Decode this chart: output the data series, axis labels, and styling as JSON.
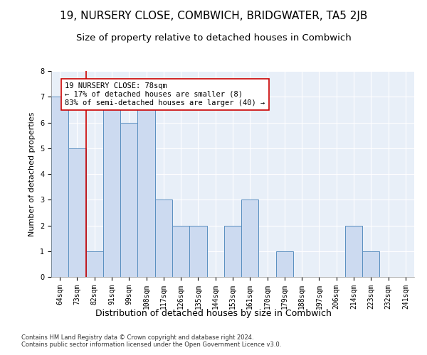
{
  "title": "19, NURSERY CLOSE, COMBWICH, BRIDGWATER, TA5 2JB",
  "subtitle": "Size of property relative to detached houses in Combwich",
  "xlabel": "Distribution of detached houses by size in Combwich",
  "ylabel": "Number of detached properties",
  "categories": [
    "64sqm",
    "73sqm",
    "82sqm",
    "91sqm",
    "99sqm",
    "108sqm",
    "117sqm",
    "126sqm",
    "135sqm",
    "144sqm",
    "153sqm",
    "161sqm",
    "170sqm",
    "179sqm",
    "188sqm",
    "197sqm",
    "206sqm",
    "214sqm",
    "223sqm",
    "232sqm",
    "241sqm"
  ],
  "values": [
    7,
    5,
    1,
    7,
    6,
    7,
    3,
    2,
    2,
    0,
    2,
    3,
    0,
    1,
    0,
    0,
    0,
    2,
    1,
    0,
    0
  ],
  "bar_color": "#ccdaf0",
  "bar_edge_color": "#5a8fc0",
  "vline_x": 1.5,
  "vline_color": "#cc0000",
  "annotation_box_text": "19 NURSERY CLOSE: 78sqm\n← 17% of detached houses are smaller (8)\n83% of semi-detached houses are larger (40) →",
  "ylim": [
    0,
    8
  ],
  "yticks": [
    0,
    1,
    2,
    3,
    4,
    5,
    6,
    7,
    8
  ],
  "background_color": "#e8eff8",
  "footer_line1": "Contains HM Land Registry data © Crown copyright and database right 2024.",
  "footer_line2": "Contains public sector information licensed under the Open Government Licence v3.0.",
  "grid_color": "#ffffff",
  "title_fontsize": 11,
  "subtitle_fontsize": 9.5,
  "xlabel_fontsize": 9,
  "ylabel_fontsize": 8,
  "tick_fontsize": 7,
  "annotation_fontsize": 7.5,
  "footer_fontsize": 6
}
